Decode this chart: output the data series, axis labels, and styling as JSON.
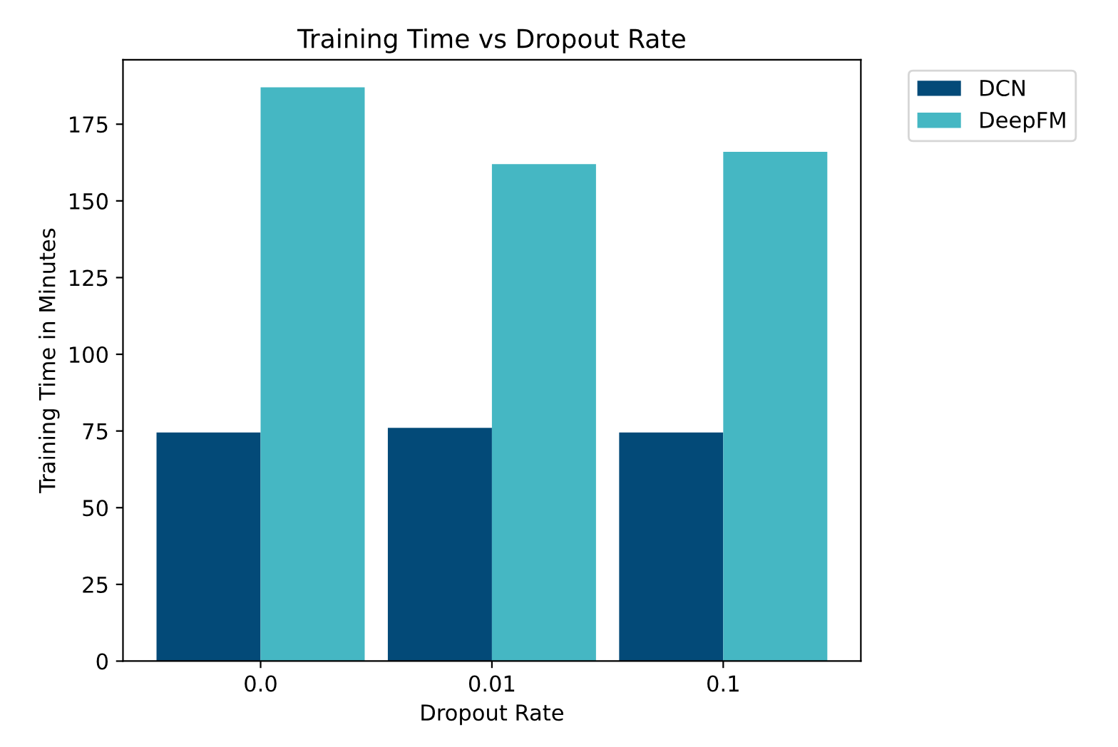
{
  "chart_data": {
    "type": "bar",
    "title": "Training Time vs Dropout Rate",
    "xlabel": "Dropout Rate",
    "ylabel": "Training Time in Minutes",
    "categories": [
      "0.0",
      "0.01",
      "0.1"
    ],
    "series": [
      {
        "name": "DCN",
        "color": "#034a78",
        "values": [
          74.5,
          76,
          74.5
        ]
      },
      {
        "name": "DeepFM",
        "color": "#45b7c3",
        "values": [
          187,
          162,
          166
        ]
      }
    ],
    "ylim": [
      0,
      196
    ],
    "yticks": [
      0,
      25,
      50,
      75,
      100,
      125,
      150,
      175
    ],
    "grid": false,
    "legend": "top right"
  }
}
